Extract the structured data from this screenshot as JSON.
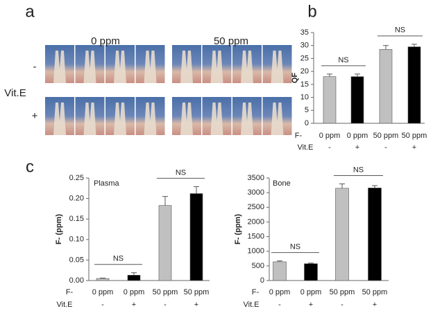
{
  "panel_labels": [
    "a",
    "b",
    "c"
  ],
  "panel_a": {
    "columns": [
      "0 ppm",
      "50 ppm"
    ],
    "rows": [
      "-",
      "+"
    ],
    "row_title": "Vit.E"
  },
  "chart_data": [
    {
      "type": "bar",
      "ylabel": "QF",
      "row_labels": [
        "F-",
        "Vit.E"
      ],
      "categories": [
        "0 ppm",
        "0 ppm",
        "50 ppm",
        "50 ppm"
      ],
      "vit_e": [
        "-",
        "+",
        "-",
        "+"
      ],
      "values": [
        18,
        18,
        28.5,
        29.5
      ],
      "errors": [
        1,
        1,
        1.5,
        1
      ],
      "colors": [
        "#c0c0c0",
        "#000000",
        "#c0c0c0",
        "#000000"
      ],
      "ylim": [
        0,
        35
      ],
      "yticks": [
        0,
        5,
        10,
        15,
        20,
        25,
        30,
        35
      ],
      "annotations": [
        "NS",
        "NS"
      ]
    },
    {
      "type": "bar",
      "title": "Plasma",
      "ylabel": "F- (ppm)",
      "row_labels": [
        "F-",
        "Vit.E"
      ],
      "categories": [
        "0 ppm",
        "0 ppm",
        "50 ppm",
        "50 ppm"
      ],
      "vit_e": [
        "-",
        "+",
        "-",
        "+"
      ],
      "values": [
        0.005,
        0.013,
        0.183,
        0.212
      ],
      "errors": [
        0.001,
        0.006,
        0.022,
        0.017
      ],
      "colors": [
        "#c0c0c0",
        "#000000",
        "#c0c0c0",
        "#000000"
      ],
      "ylim": [
        0,
        0.25
      ],
      "yticks": [
        {
          "value": 0,
          "label": "0.00"
        },
        {
          "value": 0.05,
          "label": "0.05"
        },
        {
          "value": 0.1,
          "label": "0.10"
        },
        {
          "value": 0.15,
          "label": "0.15"
        },
        {
          "value": 0.2,
          "label": "0.20"
        },
        {
          "value": 0.25,
          "label": "0.25"
        }
      ],
      "annotations": [
        "NS",
        "NS"
      ]
    },
    {
      "type": "bar",
      "title": "Bone",
      "ylabel": "F- (ppm)",
      "row_labels": [
        "F-",
        "Vit.E"
      ],
      "categories": [
        "0 ppm",
        "0 ppm",
        "50 ppm",
        "50 ppm"
      ],
      "vit_e": [
        "-",
        "+",
        "-",
        "+"
      ],
      "values": [
        640,
        575,
        3150,
        3160
      ],
      "errors": [
        30,
        20,
        150,
        80
      ],
      "colors": [
        "#c0c0c0",
        "#000000",
        "#c0c0c0",
        "#000000"
      ],
      "ylim": [
        0,
        3500
      ],
      "yticks": [
        0,
        500,
        1000,
        1500,
        2000,
        2500,
        3000,
        3500
      ],
      "annotations": [
        "NS",
        "NS"
      ]
    }
  ]
}
